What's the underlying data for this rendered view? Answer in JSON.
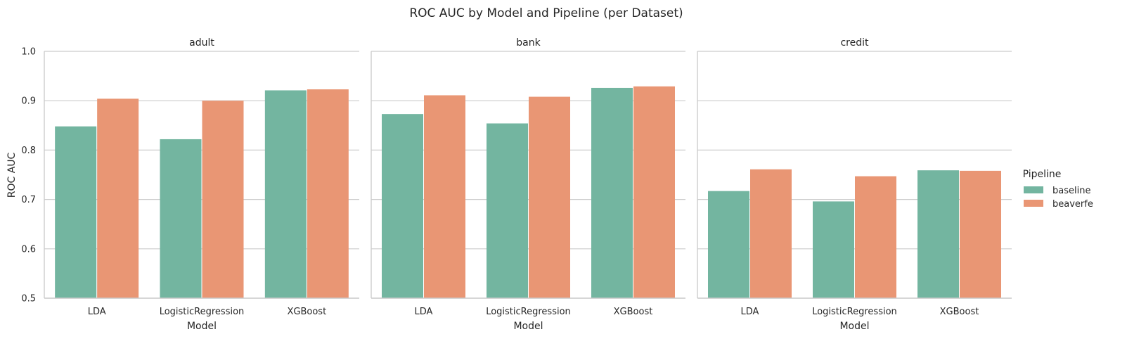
{
  "chart_data": {
    "type": "bar",
    "title": "ROC AUC by Model and Pipeline (per Dataset)",
    "ylabel": "ROC AUC",
    "xlabel": "Model",
    "ylim": [
      0.5,
      1.0
    ],
    "yticks": [
      0.5,
      0.6,
      0.7,
      0.8,
      0.9,
      1.0
    ],
    "grid": true,
    "legend": {
      "title": "Pipeline",
      "placement": "right",
      "entries": [
        "baseline",
        "beaverfe"
      ]
    },
    "colors": {
      "baseline": "#73b5a0",
      "beaverfe": "#e99674",
      "grid": "#cccccc",
      "text": "#262626"
    },
    "categories": [
      "LDA",
      "LogisticRegression",
      "XGBoost"
    ],
    "facets": [
      {
        "name": "adult",
        "series": [
          {
            "name": "baseline",
            "values": [
              0.848,
              0.822,
              0.921
            ]
          },
          {
            "name": "beaverfe",
            "values": [
              0.904,
              0.9,
              0.923
            ]
          }
        ]
      },
      {
        "name": "bank",
        "series": [
          {
            "name": "baseline",
            "values": [
              0.873,
              0.854,
              0.926
            ]
          },
          {
            "name": "beaverfe",
            "values": [
              0.911,
              0.908,
              0.929
            ]
          }
        ]
      },
      {
        "name": "credit",
        "series": [
          {
            "name": "baseline",
            "values": [
              0.717,
              0.696,
              0.759
            ]
          },
          {
            "name": "beaverfe",
            "values": [
              0.761,
              0.747,
              0.758
            ]
          }
        ]
      }
    ]
  }
}
